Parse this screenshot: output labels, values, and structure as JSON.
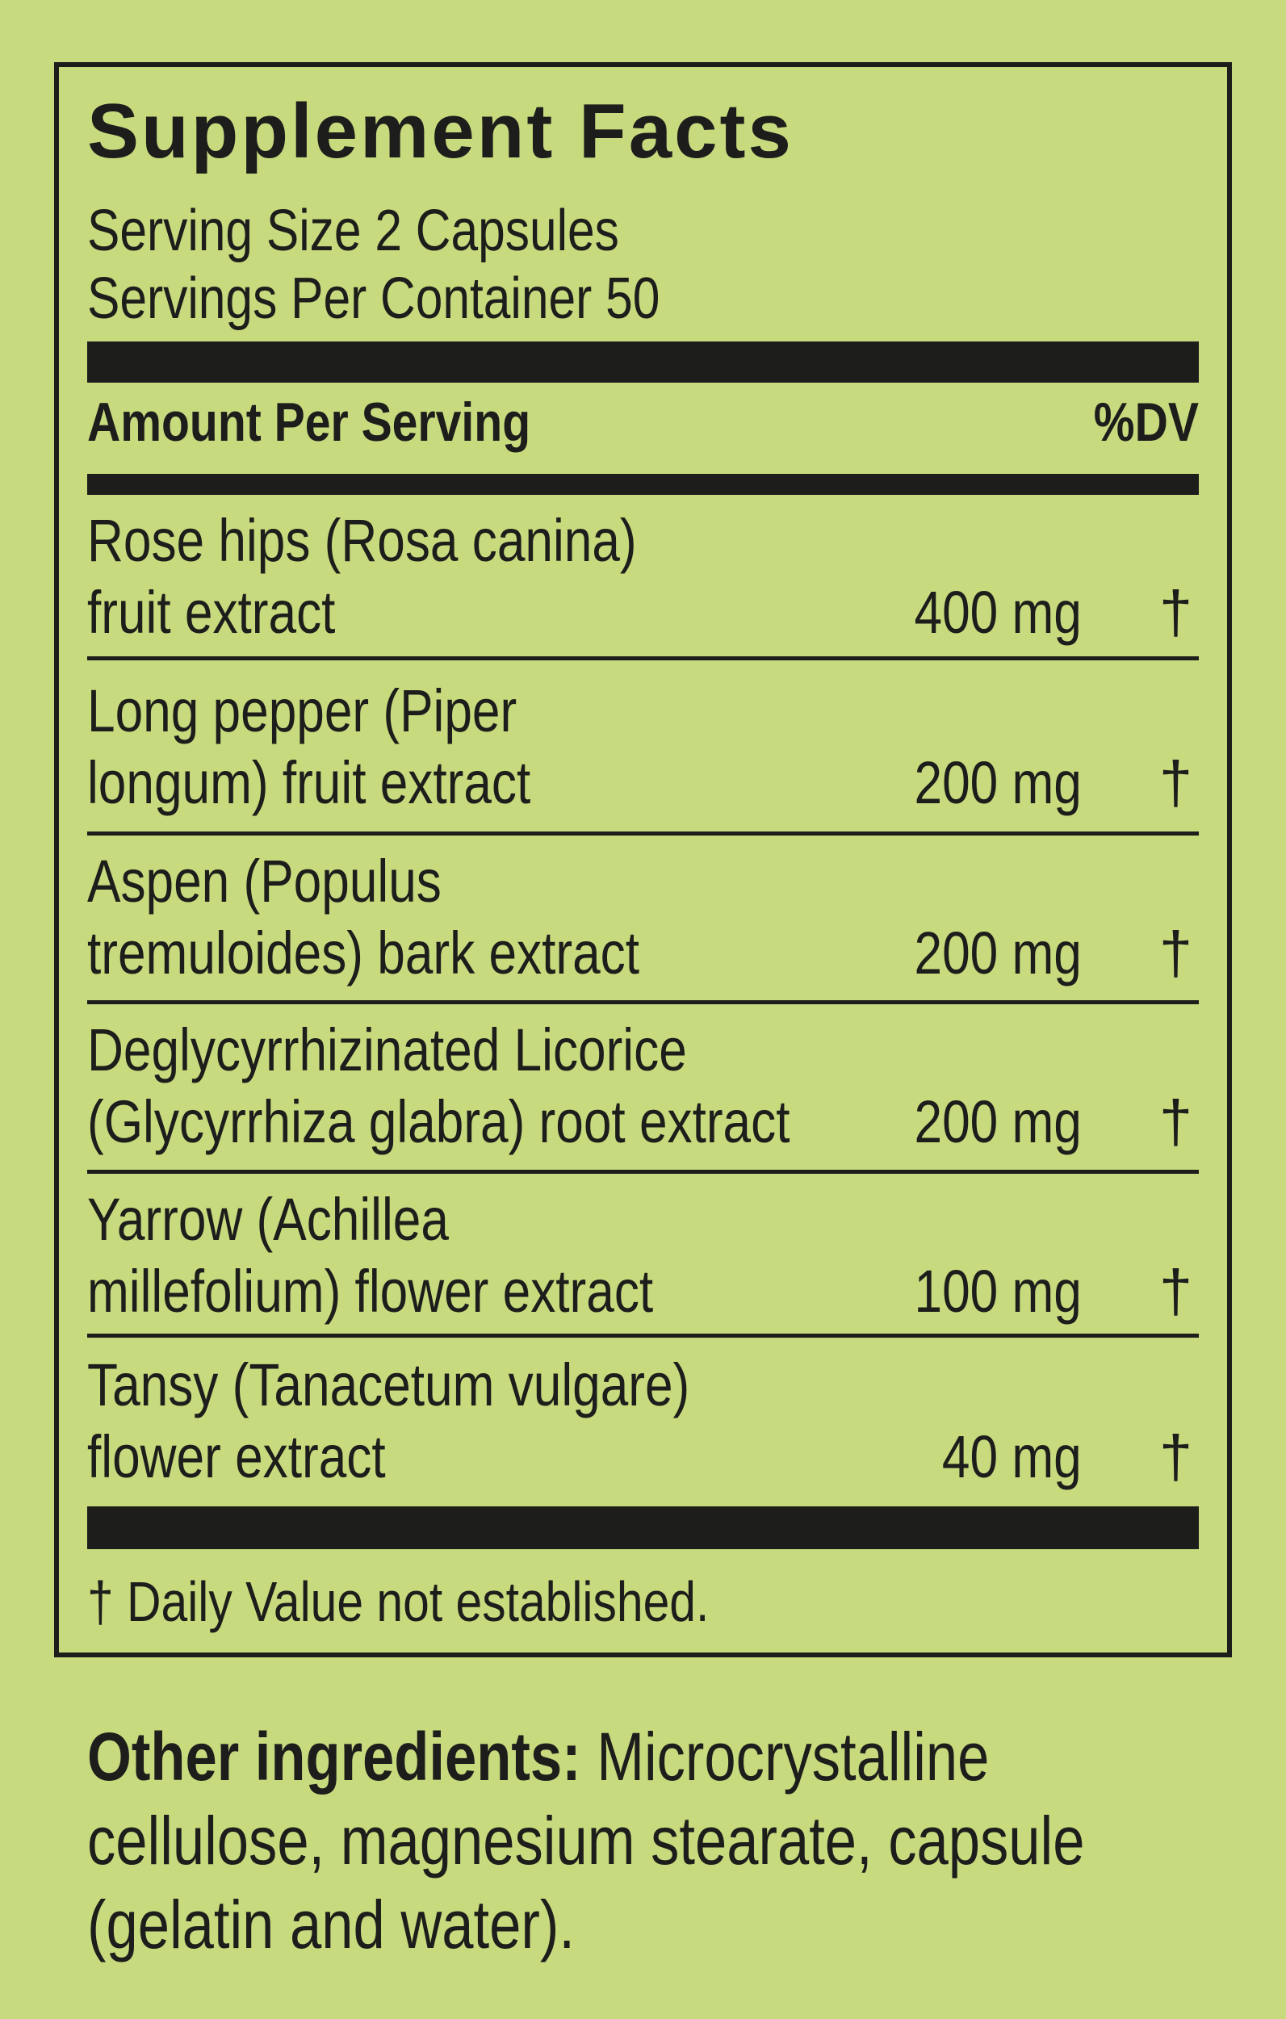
{
  "title": "Supplement Facts",
  "serving_size": "Serving Size 2 Capsules",
  "servings_per_container": "Servings Per Container 50",
  "header": {
    "amount": "Amount Per Serving",
    "dv": "%DV"
  },
  "ingredients": [
    {
      "lines": [
        "Rose hips (Rosa canina)",
        "fruit extract"
      ],
      "amount": "400 mg",
      "dv": "†"
    },
    {
      "lines": [
        "Long pepper (Piper",
        "longum) fruit extract"
      ],
      "amount": "200 mg",
      "dv": "†"
    },
    {
      "lines": [
        "Aspen (Populus",
        "tremuloides) bark extract"
      ],
      "amount": "200 mg",
      "dv": "†"
    },
    {
      "lines": [
        "Deglycyrrhizinated Licorice",
        "(Glycyrrhiza glabra) root extract"
      ],
      "amount": "200 mg",
      "dv": "†"
    },
    {
      "lines": [
        "Yarrow (Achillea",
        "millefolium) flower extract"
      ],
      "amount": "100 mg",
      "dv": "†"
    },
    {
      "lines": [
        "Tansy (Tanacetum vulgare)",
        "flower extract"
      ],
      "amount": "40 mg",
      "dv": "†"
    }
  ],
  "footnote": "† Daily Value not established.",
  "other_ingredients": {
    "label": "Other ingredients:",
    "lines": [
      " Microcrystalline",
      "cellulose, magnesium stearate, capsule",
      "(gelatin and water)."
    ]
  },
  "colors": {
    "background": "#c7da7e",
    "ink": "#1d1d1b"
  }
}
